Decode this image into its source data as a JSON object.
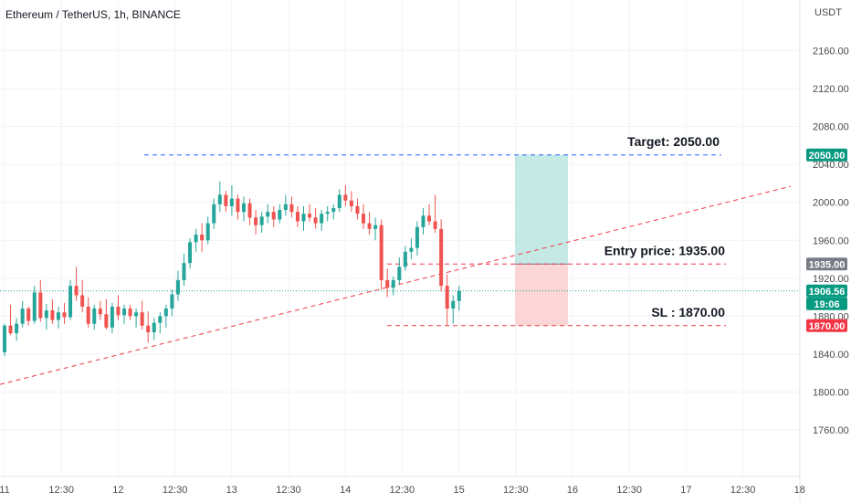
{
  "chart_data": {
    "type": "candlestick",
    "title": "Ethereum / TetherUS, 1h, BINANCE",
    "currency": "USDT",
    "ylim": [
      1735,
      2200
    ],
    "y_ticks": [
      "2160.00",
      "2120.00",
      "2080.00",
      "2040.00",
      "2000.00",
      "1960.00",
      "1920.00",
      "1880.00",
      "1840.00",
      "1800.00",
      "1760.00"
    ],
    "x_ticks": [
      "11",
      "12:30",
      "12",
      "12:30",
      "13",
      "12:30",
      "14",
      "12:30",
      "15",
      "12:30",
      "16",
      "12:30",
      "17",
      "12:30",
      "18"
    ],
    "grid": true,
    "candles": [
      [
        1842,
        1872,
        1838,
        1870
      ],
      [
        1870,
        1892,
        1860,
        1862
      ],
      [
        1862,
        1878,
        1854,
        1872
      ],
      [
        1872,
        1896,
        1868,
        1888
      ],
      [
        1888,
        1890,
        1870,
        1875
      ],
      [
        1875,
        1912,
        1872,
        1905
      ],
      [
        1905,
        1918,
        1874,
        1878
      ],
      [
        1878,
        1893,
        1866,
        1886
      ],
      [
        1886,
        1898,
        1872,
        1876
      ],
      [
        1876,
        1890,
        1867,
        1884
      ],
      [
        1884,
        1894,
        1872,
        1879
      ],
      [
        1879,
        1918,
        1876,
        1912
      ],
      [
        1912,
        1932,
        1896,
        1902
      ],
      [
        1902,
        1918,
        1884,
        1890
      ],
      [
        1890,
        1900,
        1868,
        1872
      ],
      [
        1872,
        1892,
        1866,
        1888
      ],
      [
        1888,
        1896,
        1876,
        1882
      ],
      [
        1882,
        1898,
        1866,
        1868
      ],
      [
        1868,
        1894,
        1862,
        1890
      ],
      [
        1890,
        1902,
        1876,
        1881
      ],
      [
        1881,
        1892,
        1872,
        1888
      ],
      [
        1888,
        1892,
        1876,
        1880
      ],
      [
        1880,
        1888,
        1868,
        1884
      ],
      [
        1884,
        1896,
        1866,
        1870
      ],
      [
        1870,
        1885,
        1852,
        1863
      ],
      [
        1863,
        1878,
        1855,
        1873
      ],
      [
        1873,
        1884,
        1862,
        1880
      ],
      [
        1880,
        1892,
        1868,
        1888
      ],
      [
        1888,
        1908,
        1880,
        1903
      ],
      [
        1903,
        1928,
        1896,
        1918
      ],
      [
        1918,
        1946,
        1912,
        1936
      ],
      [
        1936,
        1962,
        1930,
        1958
      ],
      [
        1958,
        1972,
        1948,
        1966
      ],
      [
        1966,
        1978,
        1948,
        1960
      ],
      [
        1960,
        1985,
        1956,
        1978
      ],
      [
        1978,
        2004,
        1972,
        1998
      ],
      [
        1998,
        2022,
        1990,
        2008
      ],
      [
        2008,
        2012,
        1990,
        1996
      ],
      [
        1996,
        2018,
        1986,
        2004
      ],
      [
        2004,
        2008,
        1982,
        1990
      ],
      [
        1990,
        2006,
        1980,
        1999
      ],
      [
        1999,
        2004,
        1976,
        1984
      ],
      [
        1984,
        1992,
        1966,
        1976
      ],
      [
        1976,
        1990,
        1968,
        1985
      ],
      [
        1985,
        1998,
        1978,
        1990
      ],
      [
        1990,
        1996,
        1974,
        1982
      ],
      [
        1982,
        1998,
        1978,
        1992
      ],
      [
        1992,
        2008,
        1986,
        1998
      ],
      [
        1998,
        2006,
        1984,
        1990
      ],
      [
        1990,
        1996,
        1974,
        1980
      ],
      [
        1980,
        1996,
        1970,
        1988
      ],
      [
        1988,
        1998,
        1980,
        1984
      ],
      [
        1984,
        1994,
        1972,
        1978
      ],
      [
        1978,
        1992,
        1970,
        1988
      ],
      [
        1988,
        1996,
        1980,
        1990
      ],
      [
        1990,
        1998,
        1982,
        1994
      ],
      [
        1994,
        2014,
        1990,
        2008
      ],
      [
        2008,
        2018,
        1996,
        2002
      ],
      [
        2002,
        2012,
        1990,
        1996
      ],
      [
        1996,
        2004,
        1982,
        1988
      ],
      [
        1988,
        1998,
        1972,
        1978
      ],
      [
        1978,
        1990,
        1966,
        1972
      ],
      [
        1972,
        1984,
        1960,
        1976
      ],
      [
        1976,
        1982,
        1908,
        1918
      ],
      [
        1918,
        1930,
        1900,
        1910
      ],
      [
        1910,
        1922,
        1902,
        1918
      ],
      [
        1918,
        1942,
        1914,
        1932
      ],
      [
        1932,
        1954,
        1928,
        1948
      ],
      [
        1948,
        1962,
        1940,
        1952
      ],
      [
        1952,
        1980,
        1944,
        1974
      ],
      [
        1974,
        1994,
        1966,
        1986
      ],
      [
        1986,
        1998,
        1976,
        1980
      ],
      [
        1980,
        2008,
        1968,
        1972
      ],
      [
        1972,
        1982,
        1906,
        1912
      ],
      [
        1912,
        1924,
        1870,
        1888
      ],
      [
        1888,
        1902,
        1872,
        1896
      ],
      [
        1896,
        1912,
        1886,
        1906.56
      ]
    ],
    "trendline": {
      "from": [
        0,
        1808
      ],
      "to": [
        87,
        2017
      ]
    },
    "position": {
      "target_label": "Target: 2050.00",
      "entry_label": "Entry price: 1935.00",
      "sl_label": "SL : 1870.00",
      "target": 2050.0,
      "entry": 1935.0,
      "stop": 1870.0
    },
    "current_price": 1906.56,
    "badges": {
      "target": "2050.00",
      "entry": "1935.00",
      "current": "1906.56",
      "countdown": "19:06",
      "stop": "1870.00"
    },
    "colors": {
      "up": "#26a69a",
      "down": "#ef5350",
      "target_line": "#2962ff",
      "trend": "#f23645",
      "profit_zone": "#b2e3dc",
      "loss_zone": "#fbcfcf",
      "badge_target": "#089981",
      "badge_entry": "#787b86",
      "badge_current": "#089981",
      "badge_stop": "#f23645"
    }
  }
}
